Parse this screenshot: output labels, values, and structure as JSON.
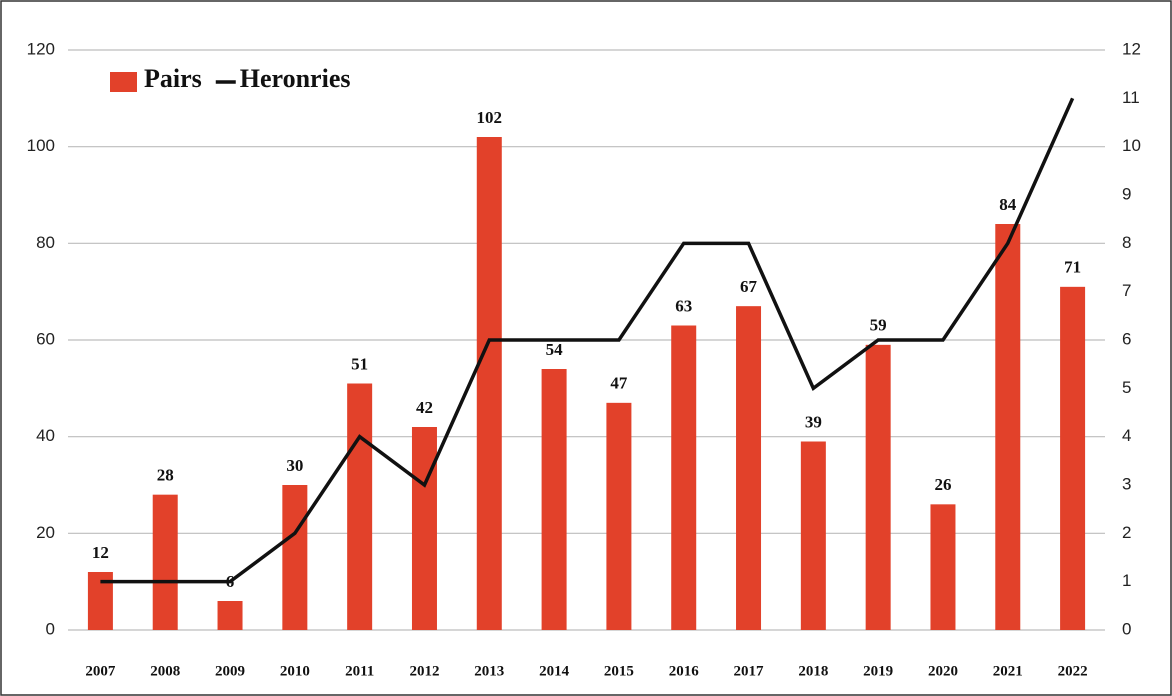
{
  "chart_data": {
    "type": "bar",
    "categories": [
      "2007",
      "2008",
      "2009",
      "2010",
      "2011",
      "2012",
      "2013",
      "2014",
      "2015",
      "2016",
      "2017",
      "2018",
      "2019",
      "2020",
      "2021",
      "2022"
    ],
    "series": [
      {
        "name": "Pairs",
        "color": "#e2412a",
        "values": [
          12,
          28,
          6,
          30,
          51,
          42,
          102,
          54,
          47,
          63,
          67,
          39,
          59,
          26,
          84,
          71
        ]
      },
      {
        "name": "Heronries",
        "color": "#111111",
        "type": "line",
        "axis": "y2",
        "values": [
          1,
          1,
          1,
          2,
          4,
          3,
          6,
          6,
          6,
          8,
          8,
          5,
          6,
          6,
          8,
          11
        ]
      }
    ],
    "ylim": [
      0,
      120
    ],
    "yticks": [
      0,
      20,
      40,
      60,
      80,
      100,
      120
    ],
    "y2lim": [
      0,
      12
    ],
    "y2ticks": [
      0,
      1,
      2,
      3,
      4,
      5,
      6,
      7,
      8,
      9,
      10,
      11,
      12
    ],
    "grid": true,
    "legend": "top-left"
  }
}
